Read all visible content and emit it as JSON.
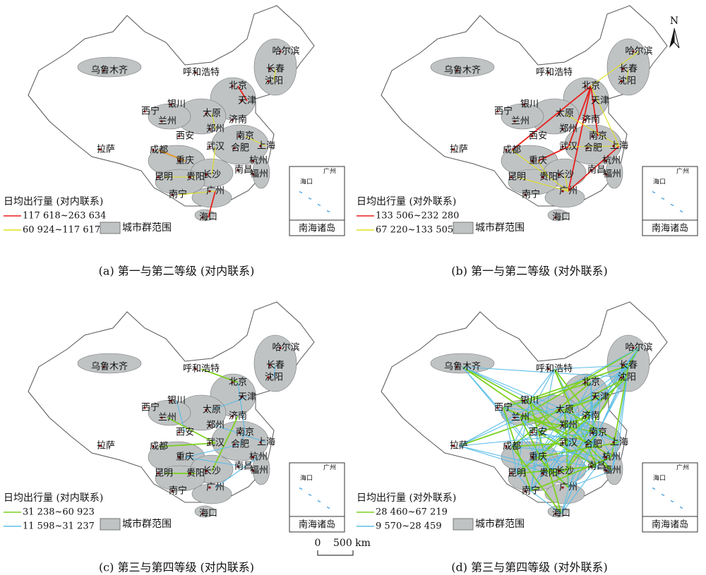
{
  "north": "N",
  "scale_bar": {
    "zero": "0",
    "length": "500 km"
  },
  "cities": [
    "乌鲁木齐",
    "呼和浩特",
    "哈尔滨",
    "长春",
    "沈阳",
    "北京",
    "天津",
    "银川",
    "太原",
    "西宁",
    "兰州",
    "济南",
    "郑州",
    "西安",
    "南京",
    "合肥",
    "上海",
    "武汉",
    "拉萨",
    "成都",
    "重庆",
    "杭州",
    "长沙",
    "南昌",
    "福州",
    "昆明",
    "贵阳",
    "南宁",
    "广州",
    "海口"
  ],
  "inset_title": "南海诸岛",
  "legend_region": "城市群范围",
  "panels": [
    {
      "caption": "(a) 第一与第二等级 (对内联系)",
      "legend_title": "日均出行量 (对内联系)",
      "classes": [
        {
          "label": "117 618~263 634",
          "color": "#e8201c"
        },
        {
          "label": "60 924~117 617",
          "color": "#e0e020"
        }
      ]
    },
    {
      "caption": "(b) 第一与第二等级 (对外联系)",
      "legend_title": "日均出行量 (对外联系)",
      "classes": [
        {
          "label": "133 506~232 280",
          "color": "#e8201c"
        },
        {
          "label": "67 220~133 505",
          "color": "#e0e020"
        }
      ]
    },
    {
      "caption": "(c) 第三与第四等级 (对内联系)",
      "legend_title": "日均出行量 (对内联系)",
      "classes": [
        {
          "label": "31 238~60 923",
          "color": "#7cd11e"
        },
        {
          "label": "11 598~31 237",
          "color": "#5bbde6"
        }
      ]
    },
    {
      "caption": "(d) 第三与第四等级 (对外联系)",
      "legend_title": "日均出行量 (对外联系)",
      "classes": [
        {
          "label": "28 460~67 219",
          "color": "#7cd11e"
        },
        {
          "label": "9 570~28 459",
          "color": "#5bbde6"
        }
      ]
    }
  ]
}
